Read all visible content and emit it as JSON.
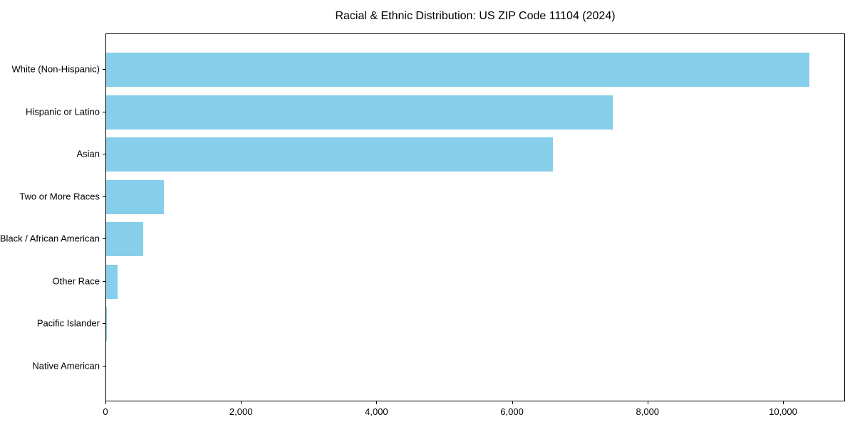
{
  "chart_data": {
    "type": "bar",
    "orientation": "horizontal",
    "title": "Racial & Ethnic Distribution: US ZIP Code 11104 (2024)",
    "categories": [
      "White (Non-Hispanic)",
      "Hispanic or Latino",
      "Asian",
      "Two or More Races",
      "Black / African American",
      "Other Race",
      "Pacific Islander",
      "Native American"
    ],
    "values": [
      10390,
      7485,
      6600,
      865,
      555,
      175,
      15,
      5
    ],
    "title_text": "Racial & Ethnic Distribution: US ZIP Code 11104 (2024)",
    "xlabel": "",
    "ylabel": "",
    "xlim": [
      0,
      10915
    ],
    "xticks": [
      0,
      2000,
      4000,
      6000,
      8000,
      10000
    ],
    "xtick_labels": [
      "0",
      "2,000",
      "4,000",
      "6,000",
      "8,000",
      "10,000"
    ],
    "bar_color": "#87CEEB",
    "spine_color": "#000000",
    "text_color": "#000000",
    "grid": false,
    "legend": "none",
    "sorted": "descending"
  }
}
